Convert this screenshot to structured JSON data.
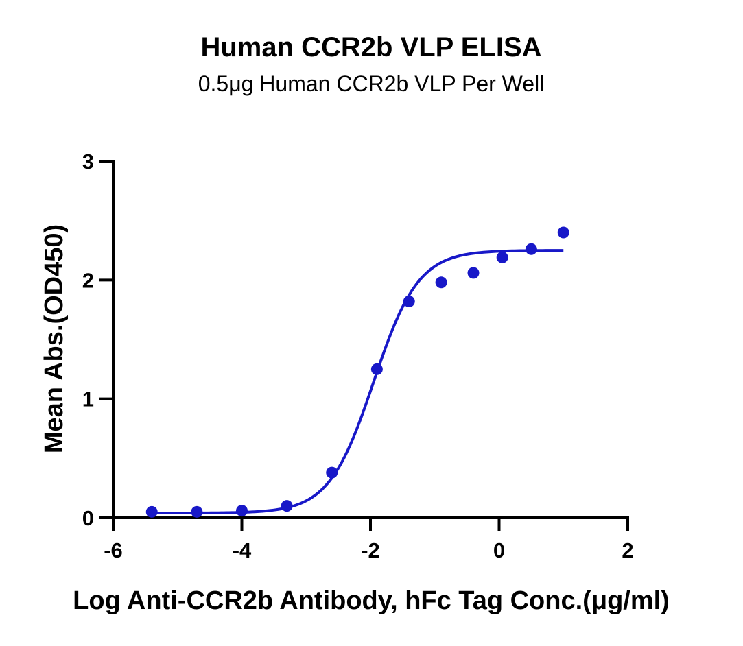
{
  "chart_data": {
    "type": "scatter",
    "title": "Human CCR2b VLP ELISA",
    "subtitle": "0.5μg Human CCR2b VLP Per Well",
    "xlabel": "Log Anti-CCR2b Antibody, hFc Tag Conc.(μg/ml)",
    "ylabel": "Mean Abs.(OD450)",
    "xlim": [
      -6,
      2
    ],
    "ylim": [
      0,
      3
    ],
    "x_ticks": [
      "-6",
      "-4",
      "-2",
      "0",
      "2"
    ],
    "y_ticks": [
      "0",
      "1",
      "2",
      "3"
    ],
    "grid": false,
    "series": [
      {
        "color": "#1818c8",
        "points": [
          {
            "x": -5.4,
            "y": 0.05
          },
          {
            "x": -4.7,
            "y": 0.05
          },
          {
            "x": -4.0,
            "y": 0.06
          },
          {
            "x": -3.3,
            "y": 0.1
          },
          {
            "x": -2.6,
            "y": 0.38
          },
          {
            "x": -1.9,
            "y": 1.25
          },
          {
            "x": -1.4,
            "y": 1.82
          },
          {
            "x": -0.9,
            "y": 1.98
          },
          {
            "x": -0.4,
            "y": 2.06
          },
          {
            "x": 0.05,
            "y": 2.19
          },
          {
            "x": 0.5,
            "y": 2.26
          },
          {
            "x": 1.0,
            "y": 2.4
          }
        ],
        "fit": {
          "model": "4PL",
          "bottom": 0.04,
          "top": 2.25,
          "log_ec50": -1.95,
          "hill_slope": 1.25,
          "x_range": [
            -5.4,
            1.0
          ]
        }
      }
    ]
  }
}
